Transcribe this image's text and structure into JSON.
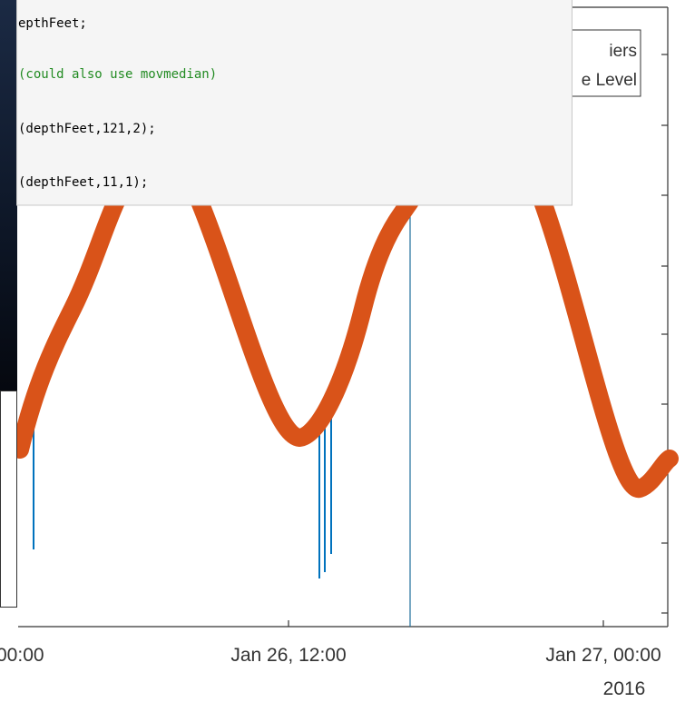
{
  "code": [
    "epthFeet;",
    "(could also use movmedian)",
    "(depthFeet,121,2);",
    "(depthFeet,11,1);"
  ],
  "legend": [
    "iers",
    "e Level"
  ],
  "x_axis": {
    "tick_labels": [
      "00:00",
      "Jan 26, 12:00",
      "Jan 27, 00:00"
    ],
    "secondary_label": "2016"
  }
}
